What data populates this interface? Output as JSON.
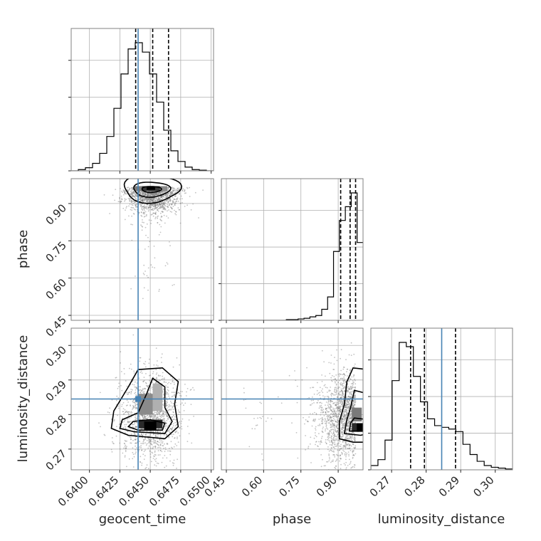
{
  "chart_data": {
    "type": "corner",
    "parameters": [
      {
        "name": "geocent_time",
        "range": [
          0.6385,
          0.6502
        ],
        "ticks": [
          0.64,
          0.6425,
          0.645,
          0.6475,
          0.65
        ],
        "tick_labels": [
          "0.6400",
          "0.6425",
          "0.6450",
          "0.6475",
          "0.6500"
        ],
        "truth": 0.644,
        "quantiles": [
          0.6438,
          0.6452,
          0.6465
        ]
      },
      {
        "name": "phase",
        "range": [
          0.43,
          1.0
        ],
        "ticks": [
          0.45,
          0.6,
          0.75,
          0.9
        ],
        "tick_labels": [
          "0.45",
          "0.60",
          "0.75",
          "0.90"
        ],
        "truth": null,
        "quantiles": [
          0.91,
          0.948,
          0.97
        ]
      },
      {
        "name": "luminosity_distance",
        "range": [
          0.264,
          0.305
        ],
        "ticks": [
          0.27,
          0.28,
          0.29,
          0.3
        ],
        "tick_labels": [
          "0.27",
          "0.28",
          "0.29",
          "0.30"
        ],
        "truth": 0.2845,
        "quantiles": [
          0.2755,
          0.2795,
          0.2885
        ]
      }
    ],
    "histograms": {
      "geocent_time": [
        0,
        2,
        5,
        12,
        28,
        55,
        100,
        155,
        195,
        205,
        190,
        155,
        110,
        65,
        32,
        15,
        6,
        2,
        1,
        0
      ],
      "phase": [
        0,
        0,
        0,
        0,
        0,
        0,
        0,
        0,
        0,
        0,
        0,
        1,
        1,
        2,
        3,
        5,
        7,
        16,
        34,
        100,
        145,
        165,
        185,
        113
      ],
      "luminosity_distance": [
        5,
        12,
        35,
        105,
        150,
        145,
        110,
        80,
        60,
        52,
        50,
        48,
        45,
        30,
        18,
        10,
        5,
        3,
        2,
        1
      ]
    },
    "truth_point": {
      "geocent_time": 0.644,
      "luminosity_distance": 0.2845
    },
    "grid": true,
    "legend": "none",
    "line_color": "#000000",
    "truth_color": "#4682b4"
  }
}
